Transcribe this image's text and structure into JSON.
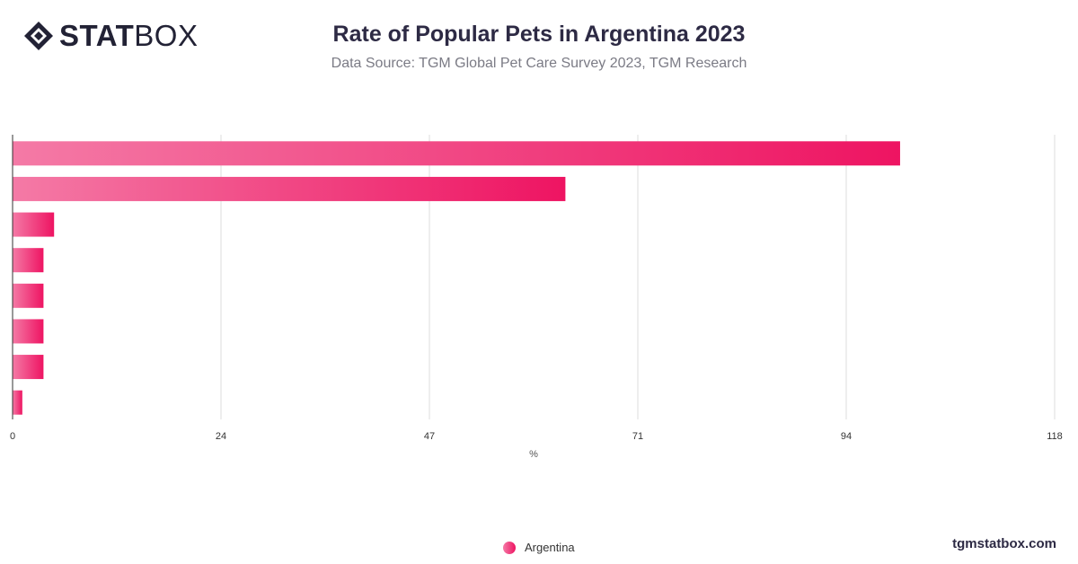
{
  "brand": {
    "logo_bold": "STAT",
    "logo_light": "BOX",
    "site": "tgmstatbox.com"
  },
  "colors": {
    "bar_start": "#f47aa6",
    "bar_end": "#ee1462",
    "grid": "#dddddd",
    "title": "#2d2a44"
  },
  "chart_data": {
    "type": "bar",
    "orientation": "horizontal",
    "title": "Rate of Popular Pets in Argentina 2023",
    "subtitle": "Data Source: TGM Global Pet Care Survey 2023, TGM Research",
    "xlabel": "%",
    "ylabel": "",
    "xlim": [
      0,
      118
    ],
    "ticks": [
      "0",
      "24",
      "47",
      "71",
      "94",
      "118"
    ],
    "tick_values": [
      0,
      23.6,
      47.2,
      70.8,
      94.4,
      118
    ],
    "grid": true,
    "legend_position": "bottom-center",
    "series": [
      {
        "name": "Argentina",
        "values": [
          100.5,
          62.6,
          4.7,
          3.5,
          3.5,
          3.5,
          3.5,
          1.1
        ]
      }
    ]
  }
}
